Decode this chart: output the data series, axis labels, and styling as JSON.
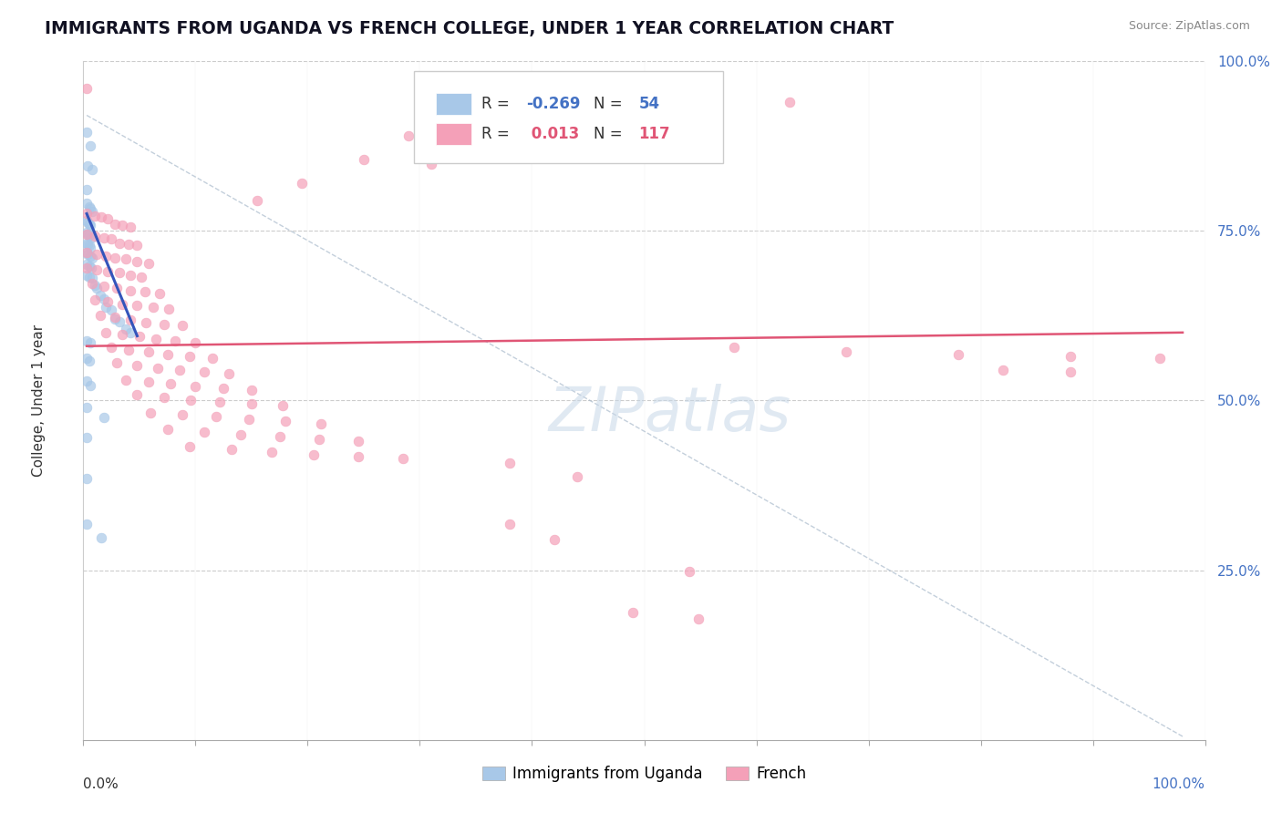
{
  "title": "IMMIGRANTS FROM UGANDA VS FRENCH COLLEGE, UNDER 1 YEAR CORRELATION CHART",
  "source": "Source: ZipAtlas.com",
  "ylabel": "College, Under 1 year",
  "legend1_label": "Immigrants from Uganda",
  "legend2_label": "French",
  "r1": -0.269,
  "n1": 54,
  "r2": 0.013,
  "n2": 117,
  "blue_color": "#a8c8e8",
  "pink_color": "#f4a0b8",
  "blue_line_color": "#3355bb",
  "pink_line_color": "#e05575",
  "diagonal_color": "#aabbcc",
  "background_color": "#ffffff",
  "blue_points": [
    [
      0.003,
      0.895
    ],
    [
      0.006,
      0.875
    ],
    [
      0.004,
      0.845
    ],
    [
      0.008,
      0.84
    ],
    [
      0.003,
      0.81
    ],
    [
      0.003,
      0.79
    ],
    [
      0.005,
      0.785
    ],
    [
      0.006,
      0.782
    ],
    [
      0.008,
      0.778
    ],
    [
      0.003,
      0.765
    ],
    [
      0.004,
      0.762
    ],
    [
      0.005,
      0.76
    ],
    [
      0.006,
      0.758
    ],
    [
      0.003,
      0.748
    ],
    [
      0.004,
      0.745
    ],
    [
      0.005,
      0.743
    ],
    [
      0.007,
      0.74
    ],
    [
      0.003,
      0.732
    ],
    [
      0.004,
      0.73
    ],
    [
      0.005,
      0.728
    ],
    [
      0.006,
      0.725
    ],
    [
      0.003,
      0.718
    ],
    [
      0.004,
      0.715
    ],
    [
      0.006,
      0.713
    ],
    [
      0.008,
      0.71
    ],
    [
      0.003,
      0.7
    ],
    [
      0.005,
      0.698
    ],
    [
      0.007,
      0.695
    ],
    [
      0.003,
      0.685
    ],
    [
      0.005,
      0.682
    ],
    [
      0.008,
      0.68
    ],
    [
      0.01,
      0.67
    ],
    [
      0.012,
      0.665
    ],
    [
      0.015,
      0.655
    ],
    [
      0.018,
      0.65
    ],
    [
      0.02,
      0.638
    ],
    [
      0.025,
      0.633
    ],
    [
      0.028,
      0.62
    ],
    [
      0.032,
      0.616
    ],
    [
      0.038,
      0.605
    ],
    [
      0.042,
      0.6
    ],
    [
      0.003,
      0.588
    ],
    [
      0.006,
      0.585
    ],
    [
      0.003,
      0.562
    ],
    [
      0.005,
      0.558
    ],
    [
      0.003,
      0.528
    ],
    [
      0.006,
      0.522
    ],
    [
      0.003,
      0.49
    ],
    [
      0.018,
      0.475
    ],
    [
      0.003,
      0.445
    ],
    [
      0.003,
      0.385
    ],
    [
      0.003,
      0.318
    ],
    [
      0.016,
      0.298
    ]
  ],
  "pink_points": [
    [
      0.003,
      0.96
    ],
    [
      0.63,
      0.94
    ],
    [
      0.48,
      0.92
    ],
    [
      0.29,
      0.89
    ],
    [
      0.37,
      0.885
    ],
    [
      0.25,
      0.855
    ],
    [
      0.31,
      0.848
    ],
    [
      0.195,
      0.82
    ],
    [
      0.155,
      0.795
    ],
    [
      0.003,
      0.775
    ],
    [
      0.01,
      0.772
    ],
    [
      0.016,
      0.77
    ],
    [
      0.022,
      0.768
    ],
    [
      0.028,
      0.76
    ],
    [
      0.035,
      0.758
    ],
    [
      0.042,
      0.756
    ],
    [
      0.003,
      0.745
    ],
    [
      0.01,
      0.742
    ],
    [
      0.018,
      0.74
    ],
    [
      0.025,
      0.738
    ],
    [
      0.032,
      0.732
    ],
    [
      0.04,
      0.73
    ],
    [
      0.048,
      0.728
    ],
    [
      0.003,
      0.718
    ],
    [
      0.012,
      0.715
    ],
    [
      0.02,
      0.712
    ],
    [
      0.028,
      0.71
    ],
    [
      0.038,
      0.708
    ],
    [
      0.048,
      0.705
    ],
    [
      0.058,
      0.702
    ],
    [
      0.003,
      0.695
    ],
    [
      0.012,
      0.692
    ],
    [
      0.022,
      0.69
    ],
    [
      0.032,
      0.688
    ],
    [
      0.042,
      0.685
    ],
    [
      0.052,
      0.682
    ],
    [
      0.008,
      0.672
    ],
    [
      0.018,
      0.668
    ],
    [
      0.03,
      0.665
    ],
    [
      0.042,
      0.662
    ],
    [
      0.055,
      0.66
    ],
    [
      0.068,
      0.658
    ],
    [
      0.01,
      0.648
    ],
    [
      0.022,
      0.645
    ],
    [
      0.035,
      0.642
    ],
    [
      0.048,
      0.64
    ],
    [
      0.062,
      0.637
    ],
    [
      0.076,
      0.635
    ],
    [
      0.015,
      0.625
    ],
    [
      0.028,
      0.622
    ],
    [
      0.042,
      0.618
    ],
    [
      0.056,
      0.615
    ],
    [
      0.072,
      0.612
    ],
    [
      0.088,
      0.61
    ],
    [
      0.02,
      0.6
    ],
    [
      0.035,
      0.597
    ],
    [
      0.05,
      0.594
    ],
    [
      0.065,
      0.591
    ],
    [
      0.082,
      0.588
    ],
    [
      0.1,
      0.585
    ],
    [
      0.025,
      0.578
    ],
    [
      0.04,
      0.574
    ],
    [
      0.058,
      0.571
    ],
    [
      0.075,
      0.568
    ],
    [
      0.095,
      0.565
    ],
    [
      0.115,
      0.562
    ],
    [
      0.03,
      0.555
    ],
    [
      0.048,
      0.551
    ],
    [
      0.066,
      0.548
    ],
    [
      0.086,
      0.545
    ],
    [
      0.108,
      0.542
    ],
    [
      0.13,
      0.54
    ],
    [
      0.038,
      0.53
    ],
    [
      0.058,
      0.527
    ],
    [
      0.078,
      0.524
    ],
    [
      0.1,
      0.521
    ],
    [
      0.125,
      0.518
    ],
    [
      0.15,
      0.515
    ],
    [
      0.048,
      0.508
    ],
    [
      0.072,
      0.504
    ],
    [
      0.096,
      0.501
    ],
    [
      0.122,
      0.498
    ],
    [
      0.15,
      0.495
    ],
    [
      0.178,
      0.492
    ],
    [
      0.06,
      0.482
    ],
    [
      0.088,
      0.479
    ],
    [
      0.118,
      0.476
    ],
    [
      0.148,
      0.472
    ],
    [
      0.18,
      0.469
    ],
    [
      0.212,
      0.465
    ],
    [
      0.075,
      0.458
    ],
    [
      0.108,
      0.454
    ],
    [
      0.14,
      0.45
    ],
    [
      0.175,
      0.447
    ],
    [
      0.21,
      0.443
    ],
    [
      0.245,
      0.44
    ],
    [
      0.095,
      0.432
    ],
    [
      0.132,
      0.428
    ],
    [
      0.168,
      0.424
    ],
    [
      0.205,
      0.42
    ],
    [
      0.245,
      0.417
    ],
    [
      0.285,
      0.414
    ],
    [
      0.58,
      0.578
    ],
    [
      0.68,
      0.572
    ],
    [
      0.78,
      0.568
    ],
    [
      0.88,
      0.565
    ],
    [
      0.96,
      0.562
    ],
    [
      0.82,
      0.545
    ],
    [
      0.88,
      0.542
    ],
    [
      0.38,
      0.408
    ],
    [
      0.44,
      0.388
    ],
    [
      0.38,
      0.318
    ],
    [
      0.42,
      0.295
    ],
    [
      0.54,
      0.248
    ],
    [
      0.49,
      0.188
    ],
    [
      0.548,
      0.178
    ]
  ],
  "blue_line": [
    [
      0.003,
      0.775
    ],
    [
      0.048,
      0.595
    ]
  ],
  "pink_line": [
    [
      0.003,
      0.58
    ],
    [
      0.98,
      0.6
    ]
  ],
  "diag_line": [
    [
      0.003,
      0.92
    ],
    [
      0.98,
      0.005
    ]
  ]
}
